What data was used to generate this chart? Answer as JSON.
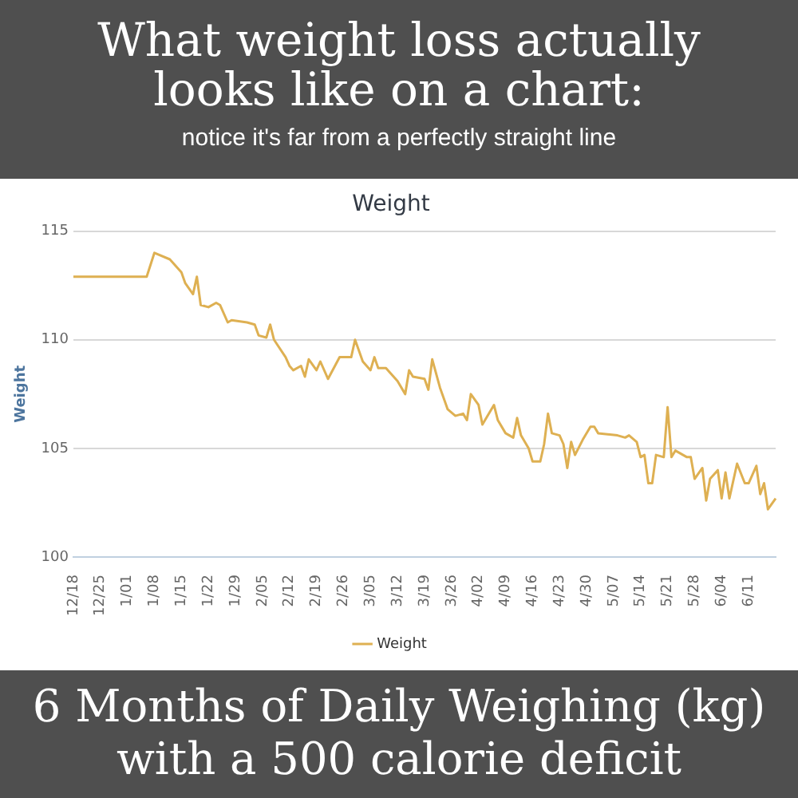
{
  "chart_data": {
    "type": "line",
    "title": "What weight loss actually looks like on a chart:",
    "subtitle": "notice it's far from a perfectly straight line",
    "annotations": [
      "Weight",
      "6 Months of Daily Weighing (kg) with a 500 calorie deficit"
    ],
    "ylabel": "Weight",
    "legend": "bottom",
    "grid": "y",
    "marker": "none",
    "line_style": "solid",
    "categories": [
      "12/18",
      null,
      null,
      null,
      null,
      null,
      null,
      "12/25",
      null,
      null,
      null,
      null,
      null,
      null,
      "1/01",
      null,
      null,
      null,
      null,
      null,
      null,
      "1/08",
      null,
      null,
      null,
      null,
      null,
      null,
      "1/15",
      null,
      null,
      null,
      null,
      null,
      null,
      "1/22",
      null,
      null,
      null,
      null,
      null,
      null,
      "1/29",
      null,
      null,
      null,
      null,
      null,
      null,
      "2/05",
      null,
      null,
      null,
      null,
      null,
      null,
      "2/12",
      null,
      null,
      null,
      null,
      null,
      null,
      "2/19",
      null,
      null,
      null,
      null,
      null,
      null,
      "2/26",
      null,
      null,
      null,
      null,
      null,
      null,
      "3/05",
      null,
      null,
      null,
      null,
      null,
      null,
      "3/12",
      null,
      null,
      null,
      null,
      null,
      null,
      "3/19",
      null,
      null,
      null,
      null,
      null,
      null,
      "3/26",
      null,
      null,
      null,
      null,
      null,
      null,
      "4/02",
      null,
      null,
      null,
      null,
      null,
      null,
      "4/09",
      null,
      null,
      null,
      null,
      null,
      null,
      "4/16",
      null,
      null,
      null,
      null,
      null,
      null,
      "4/23",
      null,
      null,
      null,
      null,
      null,
      null,
      "4/30",
      null,
      null,
      null,
      null,
      null,
      null,
      "5/07",
      null,
      null,
      null,
      null,
      null,
      null,
      "5/14",
      null,
      null,
      null,
      null,
      null,
      null,
      "5/21",
      null,
      null,
      null,
      null,
      null,
      null,
      "5/28",
      null,
      null,
      null,
      null,
      null,
      null,
      "6/04",
      null,
      null,
      null,
      null,
      null,
      null,
      "6/11",
      null,
      null,
      null,
      null,
      null,
      null,
      null
    ],
    "ylim": [
      100,
      115
    ],
    "yticks": [
      100,
      105,
      110,
      115
    ],
    "series": [
      {
        "name": "Weight",
        "color": "#deb052",
        "values": [
          112.9,
          null,
          null,
          null,
          null,
          null,
          null,
          null,
          null,
          null,
          null,
          null,
          null,
          null,
          null,
          null,
          null,
          null,
          null,
          112.9,
          null,
          114.0,
          null,
          null,
          null,
          113.7,
          null,
          null,
          113.1,
          112.6,
          null,
          112.1,
          112.9,
          111.6,
          null,
          111.5,
          null,
          111.7,
          111.6,
          null,
          110.8,
          110.9,
          null,
          null,
          null,
          110.8,
          null,
          110.7,
          110.2,
          null,
          110.1,
          110.7,
          110.0,
          null,
          null,
          109.2,
          108.8,
          108.6,
          null,
          108.8,
          108.3,
          109.1,
          null,
          108.6,
          109.0,
          null,
          108.2,
          null,
          null,
          109.2,
          null,
          null,
          109.2,
          110.0,
          null,
          109.0,
          null,
          108.6,
          109.2,
          108.7,
          null,
          108.7,
          null,
          null,
          108.1,
          null,
          107.5,
          108.6,
          108.3,
          null,
          null,
          108.2,
          107.7,
          109.1,
          null,
          107.8,
          null,
          106.8,
          null,
          106.5,
          null,
          106.6,
          106.3,
          107.5,
          null,
          107.0,
          106.1,
          null,
          null,
          107.0,
          106.3,
          null,
          105.7,
          null,
          105.5,
          106.4,
          105.6,
          null,
          105.0,
          104.4,
          null,
          104.4,
          105.2,
          106.6,
          105.7,
          null,
          105.6,
          105.2,
          104.1,
          105.3,
          104.7,
          null,
          105.4,
          null,
          106.0,
          106.0,
          105.7,
          null,
          null,
          null,
          null,
          105.6,
          null,
          105.5,
          105.6,
          null,
          105.3,
          104.6,
          104.7,
          103.4,
          103.4,
          104.7,
          null,
          104.6,
          106.9,
          104.6,
          104.9,
          null,
          104.7,
          104.6,
          104.6,
          103.6,
          null,
          104.1,
          102.6,
          103.6,
          null,
          104.0,
          102.7,
          103.9,
          102.7,
          null,
          104.3,
          null,
          103.4,
          103.4,
          null,
          104.2,
          102.9,
          103.4,
          102.2,
          null,
          102.7
        ]
      }
    ]
  }
}
